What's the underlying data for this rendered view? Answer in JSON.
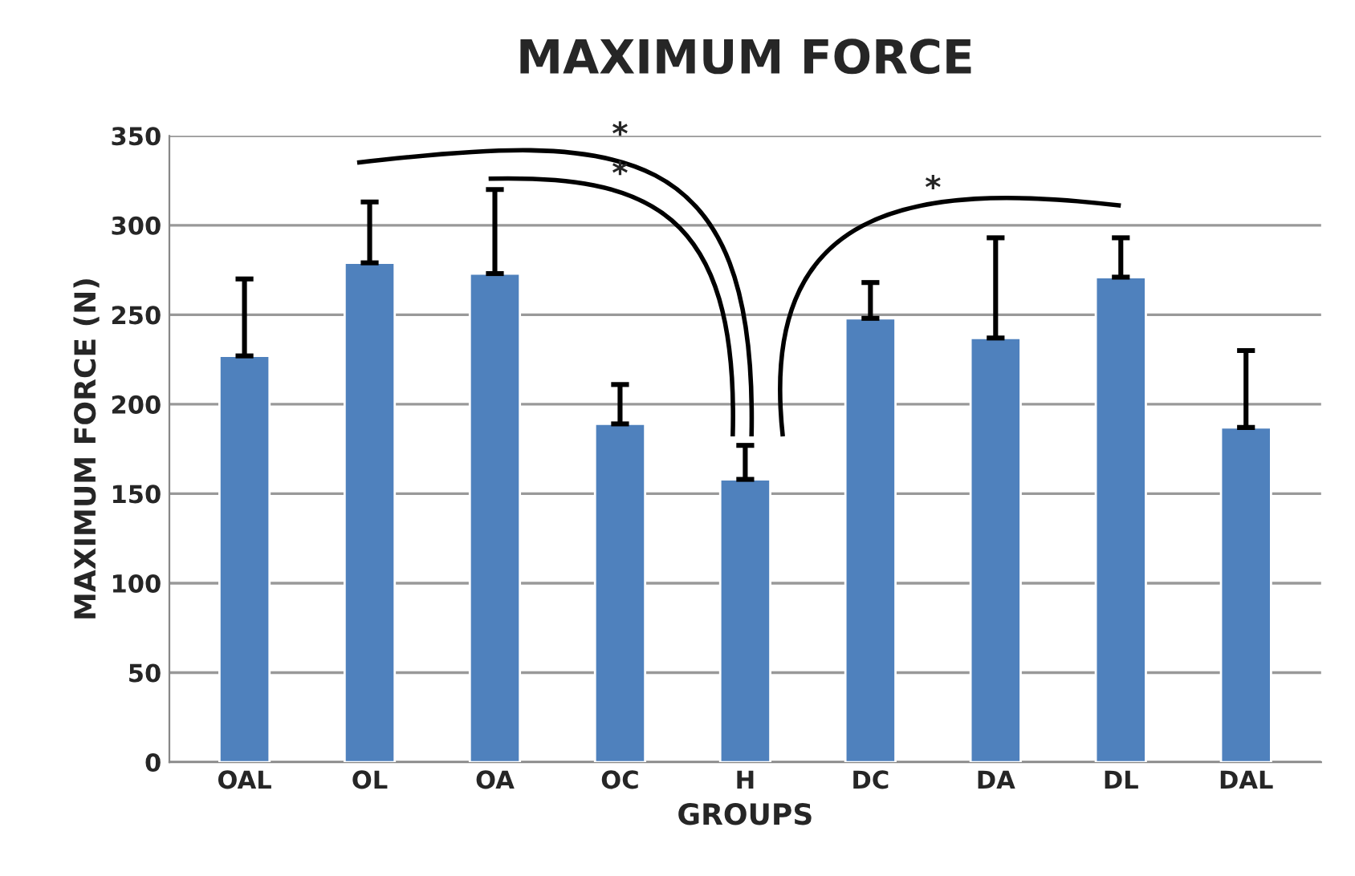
{
  "chart_data": {
    "type": "bar",
    "title": "MAXIMUM FORCE",
    "xlabel": "GROUPS",
    "ylabel": "MAXIMUM FORCE (N)",
    "categories": [
      "OAL",
      "OL",
      "OA",
      "OC",
      "H",
      "DC",
      "DA",
      "DL",
      "DAL"
    ],
    "values": [
      227,
      279,
      273,
      189,
      158,
      248,
      237,
      271,
      187
    ],
    "errors": [
      [
        227,
        270
      ],
      [
        279,
        313
      ],
      [
        273,
        320
      ],
      [
        189,
        211
      ],
      [
        158,
        177
      ],
      [
        248,
        268
      ],
      [
        237,
        293
      ],
      [
        271,
        293
      ],
      [
        187,
        230
      ]
    ],
    "color": "#4f81bd",
    "ylim": [
      0,
      350
    ],
    "yticks": [
      0,
      50,
      100,
      150,
      200,
      250,
      300,
      350
    ],
    "grid": "y",
    "legend": false,
    "annotations": [
      "*",
      "*",
      "*"
    ]
  }
}
